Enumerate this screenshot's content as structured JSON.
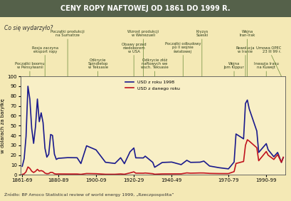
{
  "chart_data": {
    "type": "line",
    "title": "CENY ROPY NAFTOWEJ OD 1861 DO 1999 R.",
    "subtitle": "Co się wydarzyło?",
    "y_label": "w dolarach za baryłkę",
    "source": "Źródło: BP Amoco Statistical review of world energy 1999, „Rzeczpospolita”",
    "x": [
      1861,
      1862,
      1863,
      1864,
      1865,
      1866,
      1867,
      1868,
      1869,
      1870,
      1871,
      1872,
      1873,
      1874,
      1875,
      1876,
      1877,
      1878,
      1879,
      1880,
      1885,
      1890,
      1892,
      1895,
      1900,
      1905,
      1910,
      1913,
      1915,
      1918,
      1920,
      1921,
      1925,
      1926,
      1930,
      1931,
      1935,
      1940,
      1945,
      1948,
      1950,
      1955,
      1957,
      1960,
      1965,
      1970,
      1973,
      1974,
      1978,
      1979,
      1980,
      1981,
      1985,
      1986,
      1990,
      1991,
      1994,
      1996,
      1998,
      1999
    ],
    "xlim": [
      1860,
      2000
    ],
    "xticks": [
      {
        "value": 1861,
        "label": "1861-69"
      },
      {
        "value": 1880,
        "label": "1880-89"
      },
      {
        "value": 1900,
        "label": "1900-09"
      },
      {
        "value": 1920,
        "label": "1920-29"
      },
      {
        "value": 1940,
        "label": "1940-49"
      },
      {
        "value": 1970,
        "label": "1970-79"
      },
      {
        "value": 1990,
        "label": "1990-99"
      }
    ],
    "ylim": [
      0,
      100
    ],
    "yticks": [
      0,
      10,
      20,
      30,
      40,
      50,
      60,
      70,
      80,
      90,
      100
    ],
    "grid": false,
    "legend": "upper center",
    "series": [
      {
        "name": "USD z roku 1998",
        "color": "#1a1a8c",
        "values": [
          8.7,
          16.4,
          39.0,
          90.0,
          77.0,
          47.0,
          32.0,
          49.0,
          77.0,
          54.0,
          63.0,
          53.0,
          27.0,
          18.0,
          21.0,
          41.0,
          40.0,
          21.0,
          15.7,
          16.8,
          17.5,
          17.4,
          11.5,
          29.5,
          25.4,
          12.8,
          11.6,
          17.4,
          11.4,
          23.5,
          27.3,
          17.3,
          17.2,
          19.0,
          12.7,
          7.7,
          12.6,
          13.0,
          10.4,
          14.8,
          12.7,
          12.9,
          14.0,
          9.0,
          7.3,
          6.1,
          13.0,
          41.5,
          36.6,
          72.5,
          76.0,
          67.0,
          44.5,
          22.8,
          31.7,
          25.5,
          18.4,
          22.8,
          12.7,
          17.6
        ]
      },
      {
        "name": "USD z danego roku",
        "color": "#c0141e",
        "values": [
          0.49,
          1.05,
          3.15,
          8.06,
          6.59,
          3.74,
          2.41,
          3.62,
          5.64,
          3.86,
          4.34,
          3.64,
          1.83,
          1.17,
          1.35,
          2.56,
          2.42,
          1.19,
          0.86,
          0.95,
          0.88,
          0.87,
          0.56,
          1.36,
          1.19,
          0.62,
          0.61,
          0.95,
          0.64,
          1.98,
          3.07,
          1.73,
          1.68,
          1.88,
          1.19,
          0.65,
          0.97,
          1.02,
          1.05,
          1.99,
          1.71,
          1.93,
          1.9,
          1.5,
          1.33,
          1.3,
          3.29,
          11.58,
          13.6,
          30.03,
          35.69,
          34.28,
          27.53,
          14.38,
          23.73,
          20.0,
          15.66,
          20.64,
          12.72,
          17.97
        ]
      }
    ],
    "annotations": [
      {
        "x": 1865,
        "text": "Początki boomu\nw Pensylwanii"
      },
      {
        "x": 1873,
        "text": "Rosja zaczyna\neksport ropy"
      },
      {
        "x": 1885,
        "text": "Początki produkcji\nna Sumatrze"
      },
      {
        "x": 1901,
        "text": "Odkrycie\nSpindletop\nw Teksasie"
      },
      {
        "x": 1920,
        "text": "Obawy przed\nniedoborem\nw USA"
      },
      {
        "x": 1925,
        "text": "Wzrost produkcji\nw Wenezueli"
      },
      {
        "x": 1931,
        "text": "Odkrycie złóż\nnaftowych we\nwsch. Teksasie"
      },
      {
        "x": 1946,
        "text": "Początki odbudowy\npo II wojnie\nświatowej"
      },
      {
        "x": 1956,
        "text": "Kryzys\nSueski"
      },
      {
        "x": 1973,
        "text": "Wojna\nJom Kippur"
      },
      {
        "x": 1979,
        "text": "Rewolucja\nw Iranie"
      },
      {
        "x": 1980,
        "text": "Wojna\nIran-Irak"
      },
      {
        "x": 1990,
        "text": "Inwazja Iraku\nna Kuwejt"
      },
      {
        "x": 1998,
        "text": "Umowa OPEC\n23 III 99 r."
      }
    ]
  }
}
